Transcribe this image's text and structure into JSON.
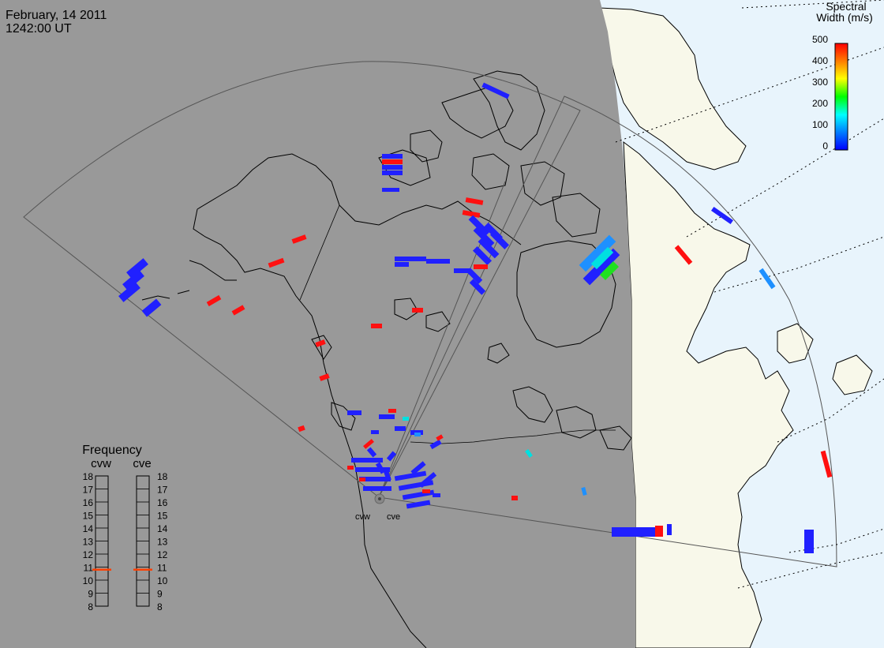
{
  "header": {
    "date": "February, 14 2011",
    "time": "1242:00 UT"
  },
  "colors": {
    "night": "#999999",
    "ocean_day": "#e8f4fc",
    "land_day": "#f8f8ea",
    "coast": "#000000",
    "fov": "#555555",
    "grid_dots": "#000000"
  },
  "colorbar": {
    "title_line1": "Spectral",
    "title_line2": "Width (m/s)",
    "ticks": [
      "500",
      "400",
      "300",
      "200",
      "100",
      "0"
    ],
    "range": [
      0,
      500
    ],
    "colormap": [
      "#0000ff",
      "#0080ff",
      "#00ffff",
      "#00ff00",
      "#ffff00",
      "#ff8000",
      "#ff0000"
    ]
  },
  "frequency": {
    "title": "Frequency",
    "left_label": "cvw",
    "right_label": "cve",
    "ticks": [
      "18",
      "17",
      "16",
      "15",
      "14",
      "13",
      "12",
      "11",
      "10",
      "9",
      "8"
    ],
    "cvw_value": 10.8,
    "cve_value": 10.8,
    "marker_color": "#ff4000"
  },
  "radars": {
    "cvw": "cvw",
    "cve": "cve"
  }
}
